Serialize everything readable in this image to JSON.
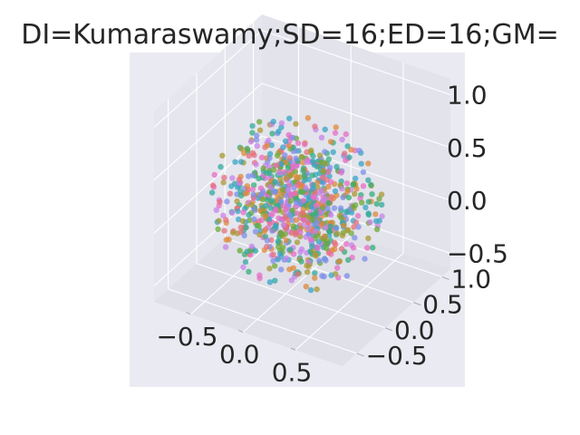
{
  "chart_data": {
    "type": "scatter",
    "projection": "3d",
    "title": "DI=Kumaraswamy;SD=16;ED=16;GM=",
    "x_ticks": [
      "−0.5",
      "0.0",
      "0.5"
    ],
    "y_ticks": [
      "−0.5",
      "0.0",
      "0.5",
      "1.0"
    ],
    "z_ticks": [
      "−0.5",
      "0.0",
      "0.5",
      "1.0"
    ],
    "xlim": [
      -0.85,
      0.95
    ],
    "ylim": [
      -0.75,
      1.15
    ],
    "zlim": [
      -0.65,
      1.15
    ],
    "grid": true,
    "background": "#eaeaf2",
    "n_points_approx": 900,
    "distribution": "roughly spherical cloud centred near (0, 0.2, 0.1), radius ~0.7",
    "palette": [
      "#e66f7c",
      "#dd8a3a",
      "#a89a31",
      "#6caa36",
      "#34ae7a",
      "#32a9a0",
      "#38a4c4",
      "#7e8fe8",
      "#c883e8",
      "#e66dc4"
    ]
  }
}
